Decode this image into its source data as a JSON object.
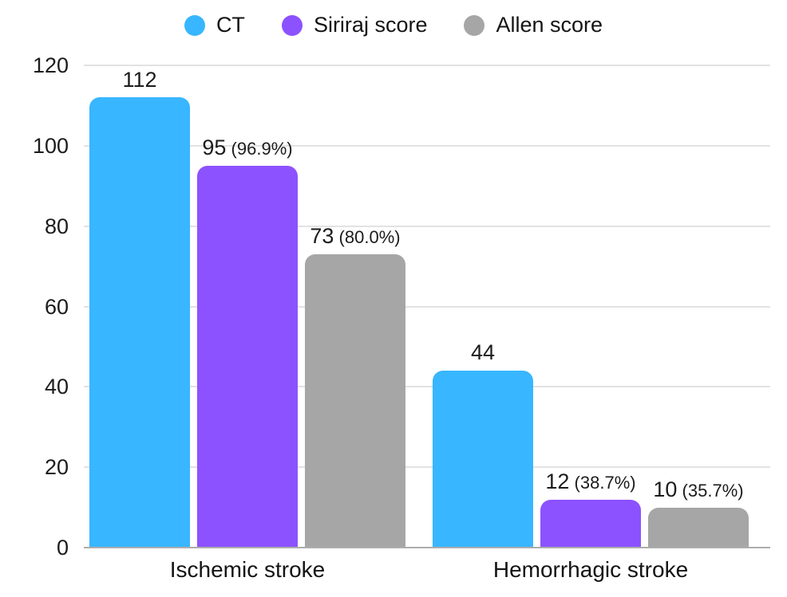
{
  "chart_data": {
    "type": "bar",
    "title": "",
    "categories": [
      "Ischemic stroke",
      "Hemorrhagic stroke"
    ],
    "series": [
      {
        "name": "CT",
        "color": "#38B6FF",
        "values": [
          112,
          44
        ],
        "pct_labels": [
          "",
          ""
        ]
      },
      {
        "name": "Siriraj score",
        "color": "#8C52FF",
        "values": [
          95,
          12
        ],
        "pct_labels": [
          "(96.9%)",
          "(38.7%)"
        ]
      },
      {
        "name": "Allen score",
        "color": "#A6A6A6",
        "values": [
          73,
          10
        ],
        "pct_labels": [
          "(80.0%)",
          "(35.7%)"
        ]
      }
    ],
    "y_ticks": [
      0,
      20,
      40,
      60,
      80,
      100,
      120
    ],
    "ylim": [
      0,
      120
    ],
    "grid": true,
    "legend_position": "top",
    "xlabel": "",
    "ylabel": ""
  },
  "colors": {
    "background": "#ffffff",
    "gridline": "#e2e2e2",
    "baseline": "#adadad",
    "text": "#1c1c1c"
  }
}
